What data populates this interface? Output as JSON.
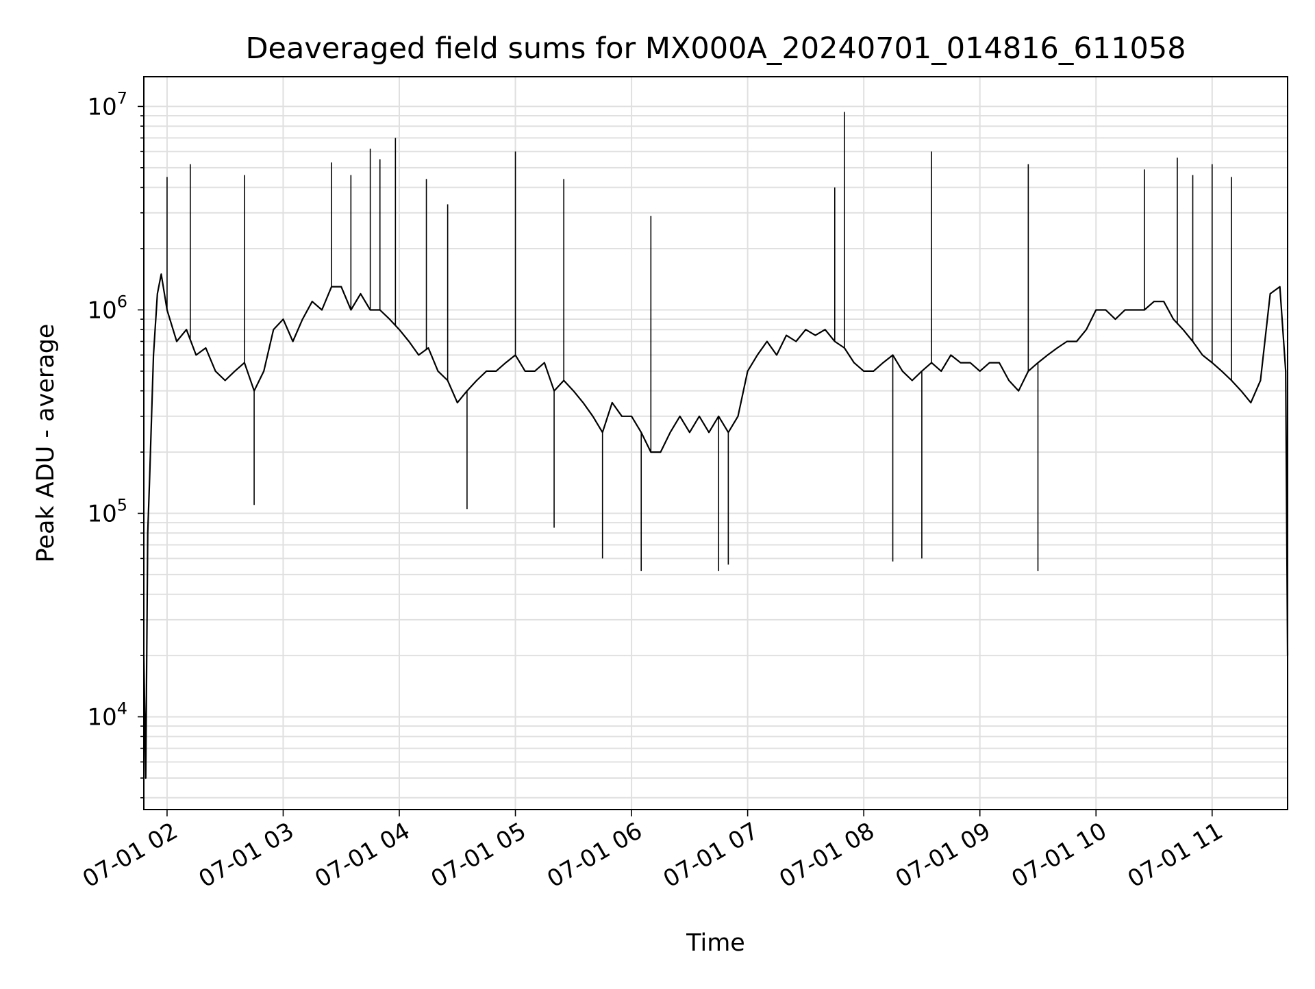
{
  "chart_data": {
    "type": "line",
    "title": "Deaveraged field sums for MX000A_20240701_014816_611058",
    "xlabel": "Time",
    "ylabel": "Peak ADU - average",
    "yscale": "log",
    "ylim": [
      3500,
      14000000
    ],
    "xlim": [
      "2024-07-01 01:48",
      "2024-07-01 11:39"
    ],
    "grid": true,
    "line_color": "#000000",
    "grid_color": "#e0e0e0",
    "x_tick_labels": [
      "07-01 02",
      "07-01 03",
      "07-01 04",
      "07-01 05",
      "07-01 06",
      "07-01 07",
      "07-01 08",
      "07-01 09",
      "07-01 10",
      "07-01 11"
    ],
    "y_ticks": [
      {
        "base": "10",
        "exp": "4",
        "value": 10000
      },
      {
        "base": "10",
        "exp": "5",
        "value": 100000
      },
      {
        "base": "10",
        "exp": "6",
        "value": 1000000
      },
      {
        "base": "10",
        "exp": "7",
        "value": 10000000
      }
    ],
    "series": [
      {
        "x": [
          "2024-07-01 01:48",
          "2024-07-01 01:49",
          "2024-07-01 01:50",
          "2024-07-01 01:51",
          "2024-07-01 01:52",
          "2024-07-01 01:53",
          "2024-07-01 01:55",
          "2024-07-01 01:57",
          "2024-07-01 02:00",
          "2024-07-01 02:05",
          "2024-07-01 02:10",
          "2024-07-01 02:15",
          "2024-07-01 02:20",
          "2024-07-01 02:25",
          "2024-07-01 02:30",
          "2024-07-01 02:35",
          "2024-07-01 02:40",
          "2024-07-01 02:45",
          "2024-07-01 02:50",
          "2024-07-01 02:55",
          "2024-07-01 03:00",
          "2024-07-01 03:05",
          "2024-07-01 03:10",
          "2024-07-01 03:15",
          "2024-07-01 03:20",
          "2024-07-01 03:25",
          "2024-07-01 03:30",
          "2024-07-01 03:35",
          "2024-07-01 03:40",
          "2024-07-01 03:45",
          "2024-07-01 03:50",
          "2024-07-01 03:55",
          "2024-07-01 04:00",
          "2024-07-01 04:05",
          "2024-07-01 04:10",
          "2024-07-01 04:15",
          "2024-07-01 04:20",
          "2024-07-01 04:25",
          "2024-07-01 04:30",
          "2024-07-01 04:35",
          "2024-07-01 04:40",
          "2024-07-01 04:45",
          "2024-07-01 04:50",
          "2024-07-01 04:55",
          "2024-07-01 05:00",
          "2024-07-01 05:05",
          "2024-07-01 05:10",
          "2024-07-01 05:15",
          "2024-07-01 05:20",
          "2024-07-01 05:25",
          "2024-07-01 05:30",
          "2024-07-01 05:35",
          "2024-07-01 05:40",
          "2024-07-01 05:45",
          "2024-07-01 05:50",
          "2024-07-01 05:55",
          "2024-07-01 06:00",
          "2024-07-01 06:05",
          "2024-07-01 06:10",
          "2024-07-01 06:15",
          "2024-07-01 06:20",
          "2024-07-01 06:25",
          "2024-07-01 06:30",
          "2024-07-01 06:35",
          "2024-07-01 06:40",
          "2024-07-01 06:45",
          "2024-07-01 06:50",
          "2024-07-01 06:55",
          "2024-07-01 07:00",
          "2024-07-01 07:05",
          "2024-07-01 07:10",
          "2024-07-01 07:15",
          "2024-07-01 07:20",
          "2024-07-01 07:25",
          "2024-07-01 07:30",
          "2024-07-01 07:35",
          "2024-07-01 07:40",
          "2024-07-01 07:45",
          "2024-07-01 07:50",
          "2024-07-01 07:55",
          "2024-07-01 08:00",
          "2024-07-01 08:05",
          "2024-07-01 08:10",
          "2024-07-01 08:15",
          "2024-07-01 08:20",
          "2024-07-01 08:25",
          "2024-07-01 08:30",
          "2024-07-01 08:35",
          "2024-07-01 08:40",
          "2024-07-01 08:45",
          "2024-07-01 08:50",
          "2024-07-01 08:55",
          "2024-07-01 09:00",
          "2024-07-01 09:05",
          "2024-07-01 09:10",
          "2024-07-01 09:15",
          "2024-07-01 09:20",
          "2024-07-01 09:25",
          "2024-07-01 09:30",
          "2024-07-01 09:35",
          "2024-07-01 09:40",
          "2024-07-01 09:45",
          "2024-07-01 09:50",
          "2024-07-01 09:55",
          "2024-07-01 10:00",
          "2024-07-01 10:05",
          "2024-07-01 10:10",
          "2024-07-01 10:15",
          "2024-07-01 10:20",
          "2024-07-01 10:25",
          "2024-07-01 10:30",
          "2024-07-01 10:35",
          "2024-07-01 10:40",
          "2024-07-01 10:45",
          "2024-07-01 10:50",
          "2024-07-01 10:55",
          "2024-07-01 11:00",
          "2024-07-01 11:05",
          "2024-07-01 11:10",
          "2024-07-01 11:15",
          "2024-07-01 11:20",
          "2024-07-01 11:25",
          "2024-07-01 11:30",
          "2024-07-01 11:35",
          "2024-07-01 11:38",
          "2024-07-01 11:39"
        ],
        "values": [
          20000,
          5000,
          80000,
          150000,
          300000,
          600000,
          1200000,
          1500000,
          1000000,
          700000,
          800000,
          600000,
          650000,
          500000,
          450000,
          500000,
          550000,
          400000,
          500000,
          800000,
          900000,
          700000,
          900000,
          1100000,
          1000000,
          1300000,
          1300000,
          1000000,
          1200000,
          1000000,
          1000000,
          900000,
          800000,
          700000,
          600000,
          650000,
          500000,
          450000,
          350000,
          400000,
          450000,
          500000,
          500000,
          550000,
          600000,
          500000,
          500000,
          550000,
          400000,
          450000,
          400000,
          350000,
          300000,
          250000,
          350000,
          300000,
          300000,
          250000,
          200000,
          200000,
          250000,
          300000,
          250000,
          300000,
          250000,
          300000,
          250000,
          300000,
          500000,
          600000,
          700000,
          600000,
          750000,
          700000,
          800000,
          750000,
          800000,
          700000,
          650000,
          550000,
          500000,
          500000,
          550000,
          600000,
          500000,
          450000,
          500000,
          550000,
          500000,
          600000,
          550000,
          550000,
          500000,
          550000,
          550000,
          450000,
          400000,
          500000,
          550000,
          600000,
          650000,
          700000,
          700000,
          800000,
          1000000,
          1000000,
          900000,
          1000000,
          1000000,
          1000000,
          1100000,
          1100000,
          900000,
          800000,
          700000,
          600000,
          550000,
          500000,
          450000,
          400000,
          350000,
          450000,
          1200000,
          1300000,
          500000,
          20000
        ]
      }
    ],
    "spikes": [
      {
        "x": "2024-07-01 02:00",
        "y": 4500000
      },
      {
        "x": "2024-07-01 02:12",
        "y": 5200000
      },
      {
        "x": "2024-07-01 02:40",
        "y": 4600000
      },
      {
        "x": "2024-07-01 03:25",
        "y": 5300000
      },
      {
        "x": "2024-07-01 03:35",
        "y": 4600000
      },
      {
        "x": "2024-07-01 03:45",
        "y": 6200000
      },
      {
        "x": "2024-07-01 03:50",
        "y": 5500000
      },
      {
        "x": "2024-07-01 03:58",
        "y": 7000000
      },
      {
        "x": "2024-07-01 04:14",
        "y": 4400000
      },
      {
        "x": "2024-07-01 04:25",
        "y": 3300000
      },
      {
        "x": "2024-07-01 05:00",
        "y": 6000000
      },
      {
        "x": "2024-07-01 05:25",
        "y": 4400000
      },
      {
        "x": "2024-07-01 06:10",
        "y": 2900000
      },
      {
        "x": "2024-07-01 07:45",
        "y": 4000000
      },
      {
        "x": "2024-07-01 07:50",
        "y": 9400000
      },
      {
        "x": "2024-07-01 08:35",
        "y": 6000000
      },
      {
        "x": "2024-07-01 09:25",
        "y": 5200000
      },
      {
        "x": "2024-07-01 10:25",
        "y": 4900000
      },
      {
        "x": "2024-07-01 10:42",
        "y": 5600000
      },
      {
        "x": "2024-07-01 10:50",
        "y": 4600000
      },
      {
        "x": "2024-07-01 11:00",
        "y": 5200000
      },
      {
        "x": "2024-07-01 11:10",
        "y": 4500000
      },
      {
        "x": "2024-07-01 05:45",
        "y": 60000
      },
      {
        "x": "2024-07-01 06:05",
        "y": 52000
      },
      {
        "x": "2024-07-01 06:45",
        "y": 52000
      },
      {
        "x": "2024-07-01 06:50",
        "y": 56000
      },
      {
        "x": "2024-07-01 08:15",
        "y": 58000
      },
      {
        "x": "2024-07-01 08:30",
        "y": 60000
      },
      {
        "x": "2024-07-01 09:30",
        "y": 52000
      },
      {
        "x": "2024-07-01 05:20",
        "y": 85000
      },
      {
        "x": "2024-07-01 02:45",
        "y": 110000
      },
      {
        "x": "2024-07-01 04:35",
        "y": 105000
      }
    ]
  }
}
